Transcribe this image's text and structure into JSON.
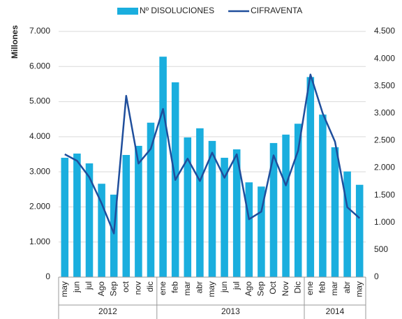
{
  "chart_data": {
    "type": "bar_line",
    "y_label": "Millones",
    "categories": [
      "may",
      "jun",
      "jul",
      "Ago",
      "Sep",
      "oct",
      "nov",
      "dic",
      "ene",
      "feb",
      "mar",
      "abr",
      "may",
      "jun",
      "jul",
      "Ago",
      "Sep",
      "Oct",
      "Nov",
      "Dic",
      "ene",
      "feb",
      "mar",
      "abr",
      "may"
    ],
    "groups": [
      {
        "label": "2012",
        "count": 8
      },
      {
        "label": "2013",
        "count": 12
      },
      {
        "label": "2014",
        "count": 5
      }
    ],
    "series": [
      {
        "name": "Nº DISOLUCIONES",
        "type": "bar",
        "axis": "y",
        "color": "#1aaede",
        "values": [
          3400,
          3520,
          3240,
          2660,
          2350,
          3480,
          3740,
          4400,
          6280,
          5550,
          3980,
          4240,
          3880,
          3400,
          3640,
          2700,
          2580,
          3820,
          4060,
          4370,
          5700,
          4630,
          3700,
          3010,
          2630
        ]
      },
      {
        "name": "CIFRAVENTA",
        "type": "line",
        "axis": "y2",
        "color": "#1f4e9c",
        "values": [
          2250,
          2130,
          1830,
          1350,
          800,
          3320,
          2080,
          2350,
          3080,
          1780,
          2170,
          1760,
          2280,
          1820,
          2250,
          1060,
          1200,
          2230,
          1680,
          2320,
          3710,
          3000,
          2480,
          1280,
          1080
        ]
      }
    ],
    "ylim": [
      0,
      7000
    ],
    "yticks": [
      0,
      {
        "value": 1000,
        "label": "1.000"
      },
      {
        "value": 2000,
        "label": "2.000"
      },
      {
        "value": 3000,
        "label": "3.000"
      },
      {
        "value": 4000,
        "label": "4.000"
      },
      {
        "value": 5000,
        "label": "5.000"
      },
      {
        "value": 6000,
        "label": "6.000"
      },
      {
        "value": 7000,
        "label": "7.000"
      }
    ],
    "y2lim": [
      0,
      4500
    ],
    "y2ticks": [
      0,
      500,
      {
        "value": 1000,
        "label": "1.000"
      },
      {
        "value": 1500,
        "label": "1.500"
      },
      {
        "value": 2000,
        "label": "2.000"
      },
      {
        "value": 2500,
        "label": "2.500"
      },
      {
        "value": 3000,
        "label": "3.000"
      },
      {
        "value": 3500,
        "label": "3.500"
      },
      {
        "value": 4000,
        "label": "4.000"
      },
      {
        "value": 4500,
        "label": "4.500"
      }
    ],
    "grid": true
  }
}
